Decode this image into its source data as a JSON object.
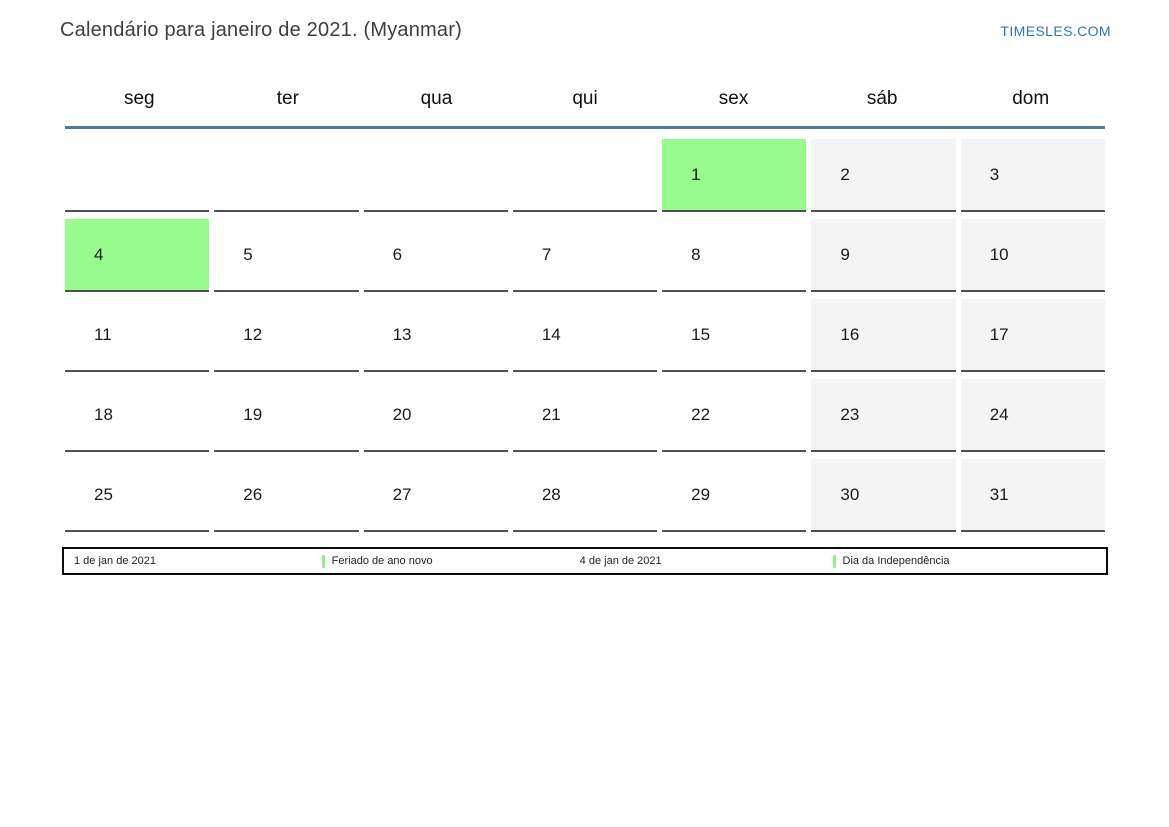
{
  "header": {
    "title": "Calendário para janeiro de 2021. (Myanmar)",
    "site_link": "TIMESLES.COM"
  },
  "calendar": {
    "weekdays": [
      "seg",
      "ter",
      "qua",
      "qui",
      "sex",
      "sáb",
      "dom"
    ],
    "weeks": [
      [
        {
          "day": "",
          "type": "empty"
        },
        {
          "day": "",
          "type": "empty"
        },
        {
          "day": "",
          "type": "empty"
        },
        {
          "day": "",
          "type": "empty"
        },
        {
          "day": "1",
          "type": "holiday"
        },
        {
          "day": "2",
          "type": "weekend"
        },
        {
          "day": "3",
          "type": "weekend"
        }
      ],
      [
        {
          "day": "4",
          "type": "holiday"
        },
        {
          "day": "5",
          "type": "normal"
        },
        {
          "day": "6",
          "type": "normal"
        },
        {
          "day": "7",
          "type": "normal"
        },
        {
          "day": "8",
          "type": "normal"
        },
        {
          "day": "9",
          "type": "weekend"
        },
        {
          "day": "10",
          "type": "weekend"
        }
      ],
      [
        {
          "day": "11",
          "type": "normal"
        },
        {
          "day": "12",
          "type": "normal"
        },
        {
          "day": "13",
          "type": "normal"
        },
        {
          "day": "14",
          "type": "normal"
        },
        {
          "day": "15",
          "type": "normal"
        },
        {
          "day": "16",
          "type": "weekend"
        },
        {
          "day": "17",
          "type": "weekend"
        }
      ],
      [
        {
          "day": "18",
          "type": "normal"
        },
        {
          "day": "19",
          "type": "normal"
        },
        {
          "day": "20",
          "type": "normal"
        },
        {
          "day": "21",
          "type": "normal"
        },
        {
          "day": "22",
          "type": "normal"
        },
        {
          "day": "23",
          "type": "weekend"
        },
        {
          "day": "24",
          "type": "weekend"
        }
      ],
      [
        {
          "day": "25",
          "type": "normal"
        },
        {
          "day": "26",
          "type": "normal"
        },
        {
          "day": "27",
          "type": "normal"
        },
        {
          "day": "28",
          "type": "normal"
        },
        {
          "day": "29",
          "type": "normal"
        },
        {
          "day": "30",
          "type": "weekend"
        },
        {
          "day": "31",
          "type": "weekend"
        }
      ]
    ]
  },
  "legend": {
    "items": [
      {
        "date": "1 de jan de 2021",
        "name": "Feriado de ano novo"
      },
      {
        "date": "4 de jan de 2021",
        "name": "Dia da Independência"
      }
    ]
  },
  "colors": {
    "holiday_green": "#98fb8e",
    "weekend_gray": "#f4f4f4",
    "header_line_blue": "#54779e",
    "site_link_blue": "#2e75bb",
    "legend_marker_green": "#8cf580"
  }
}
